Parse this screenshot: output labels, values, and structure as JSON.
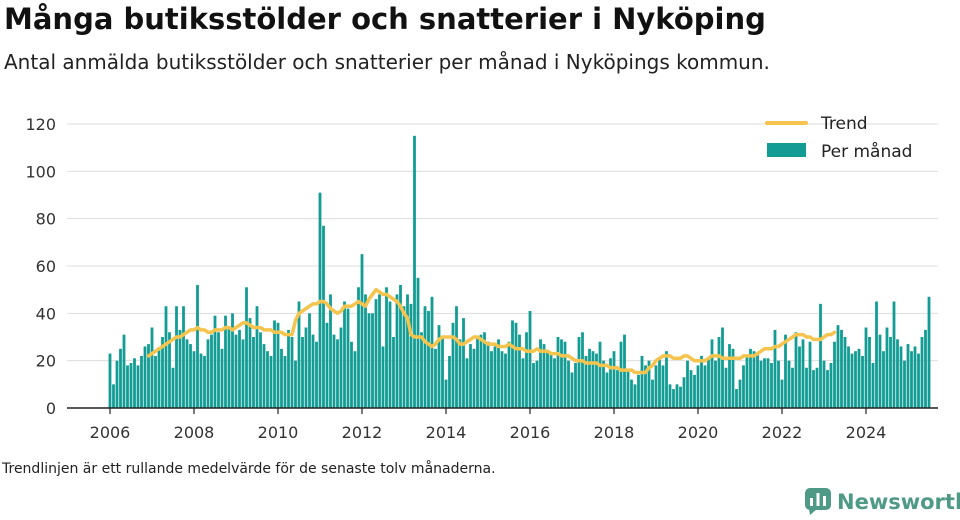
{
  "header": {
    "title": "Många butiksstölder och snatterier i Nyköping",
    "subtitle": "Antal anmälda butiksstölder och snatterier per månad i Nyköpings kommun."
  },
  "footer": {
    "note": "Trendlinjen är ett rullande medelvärde för de senaste tolv månaderna.",
    "brand": "Newsworthy"
  },
  "colors": {
    "bars": "#129c93",
    "trend": "#f5c44e",
    "grid": "#dddddd",
    "brand": "#4e9a86"
  },
  "chart_data": {
    "type": "bar",
    "title": "Många butiksstölder och snatterier i Nyköping",
    "grid": true,
    "legend_position": "top-right",
    "xlim": [
      "2006-01",
      "2024-12"
    ],
    "ylim": [
      0,
      120
    ],
    "xticks": [
      "2006",
      "2008",
      "2010",
      "2012",
      "2014",
      "2016",
      "2018",
      "2020",
      "2022",
      "2024"
    ],
    "yticks": [
      0,
      20,
      40,
      60,
      80,
      100,
      120
    ],
    "start_month": "2006-01",
    "series": [
      {
        "name": "Per månad",
        "type": "bar",
        "values": [
          23,
          10,
          20,
          25,
          31,
          18,
          19,
          21,
          18,
          22,
          26,
          27,
          34,
          22,
          25,
          30,
          43,
          32,
          17,
          43,
          33,
          43,
          29,
          27,
          24,
          52,
          23,
          22,
          29,
          31,
          39,
          32,
          25,
          39,
          34,
          40,
          31,
          33,
          29,
          51,
          38,
          30,
          43,
          32,
          27,
          24,
          22,
          37,
          36,
          25,
          22,
          33,
          30,
          20,
          45,
          30,
          34,
          40,
          31,
          28,
          91,
          77,
          36,
          48,
          31,
          29,
          34,
          45,
          42,
          28,
          24,
          51,
          65,
          48,
          40,
          40,
          46,
          48,
          26,
          51,
          45,
          30,
          48,
          52,
          43,
          48,
          44,
          115,
          55,
          32,
          43,
          41,
          47,
          25,
          35,
          30,
          12,
          22,
          36,
          43,
          29,
          38,
          21,
          27,
          25,
          30,
          31,
          32,
          28,
          24,
          26,
          29,
          24,
          23,
          28,
          37,
          36,
          31,
          21,
          32,
          41,
          19,
          20,
          29,
          27,
          24,
          23,
          21,
          30,
          29,
          28,
          20,
          15,
          19,
          30,
          32,
          22,
          25,
          24,
          23,
          28,
          20,
          15,
          21,
          24,
          16,
          28,
          31,
          16,
          12,
          10,
          14,
          22,
          18,
          20,
          12,
          18,
          21,
          18,
          24,
          10,
          8,
          10,
          9,
          13,
          20,
          16,
          14,
          18,
          22,
          18,
          21,
          29,
          20,
          30,
          34,
          17,
          27,
          25,
          8,
          12,
          18,
          22,
          25,
          24,
          23,
          20,
          21,
          21,
          19,
          33,
          20,
          12,
          31,
          20,
          17,
          32,
          26,
          29,
          17,
          28,
          16,
          17,
          44,
          20,
          16,
          19,
          28,
          35,
          33,
          30,
          26,
          23,
          24,
          25,
          22,
          34,
          30,
          19,
          45,
          31,
          24,
          34,
          30,
          45,
          29,
          26,
          20,
          27,
          24,
          26,
          23,
          30,
          33,
          47
        ]
      },
      {
        "name": "Trend",
        "type": "line",
        "start_month": "2006-12",
        "values": [
          22,
          23,
          24,
          25,
          26,
          27,
          28,
          29,
          30,
          30,
          31,
          32,
          33,
          33,
          34,
          33,
          33,
          32,
          32,
          33,
          33,
          33,
          34,
          34,
          33,
          34,
          35,
          36,
          36,
          35,
          34,
          34,
          34,
          33,
          33,
          33,
          32,
          32,
          32,
          31,
          31,
          31,
          37,
          40,
          41,
          42,
          43,
          44,
          44,
          45,
          45,
          44,
          42,
          41,
          40,
          41,
          43,
          43,
          43,
          44,
          45,
          44,
          43,
          46,
          48,
          50,
          49,
          48,
          48,
          47,
          46,
          45,
          43,
          40,
          38,
          31,
          30,
          30,
          30,
          28,
          27,
          26,
          27,
          29,
          30,
          30,
          30,
          30,
          29,
          27,
          27,
          28,
          29,
          30,
          30,
          29,
          28,
          27,
          27,
          27,
          26,
          26,
          26,
          27,
          26,
          25,
          25,
          25,
          24,
          24,
          24,
          25,
          24,
          24,
          24,
          23,
          23,
          23,
          22,
          22,
          22,
          21,
          20,
          20,
          20,
          19,
          19,
          19,
          19,
          18,
          18,
          18,
          17,
          17,
          17,
          16,
          16,
          16,
          16,
          15,
          15,
          15,
          15,
          17,
          18,
          20,
          21,
          22,
          22,
          22,
          21,
          21,
          21,
          22,
          22,
          21,
          20,
          20,
          20,
          20,
          21,
          22,
          22,
          22,
          21,
          21,
          21,
          21,
          21,
          21,
          22,
          22,
          22,
          22,
          23,
          24,
          25,
          25,
          25,
          26,
          26,
          27,
          28,
          29,
          30,
          31,
          31,
          31,
          30,
          30,
          29,
          29,
          29,
          30,
          31,
          31,
          32
        ]
      }
    ]
  }
}
